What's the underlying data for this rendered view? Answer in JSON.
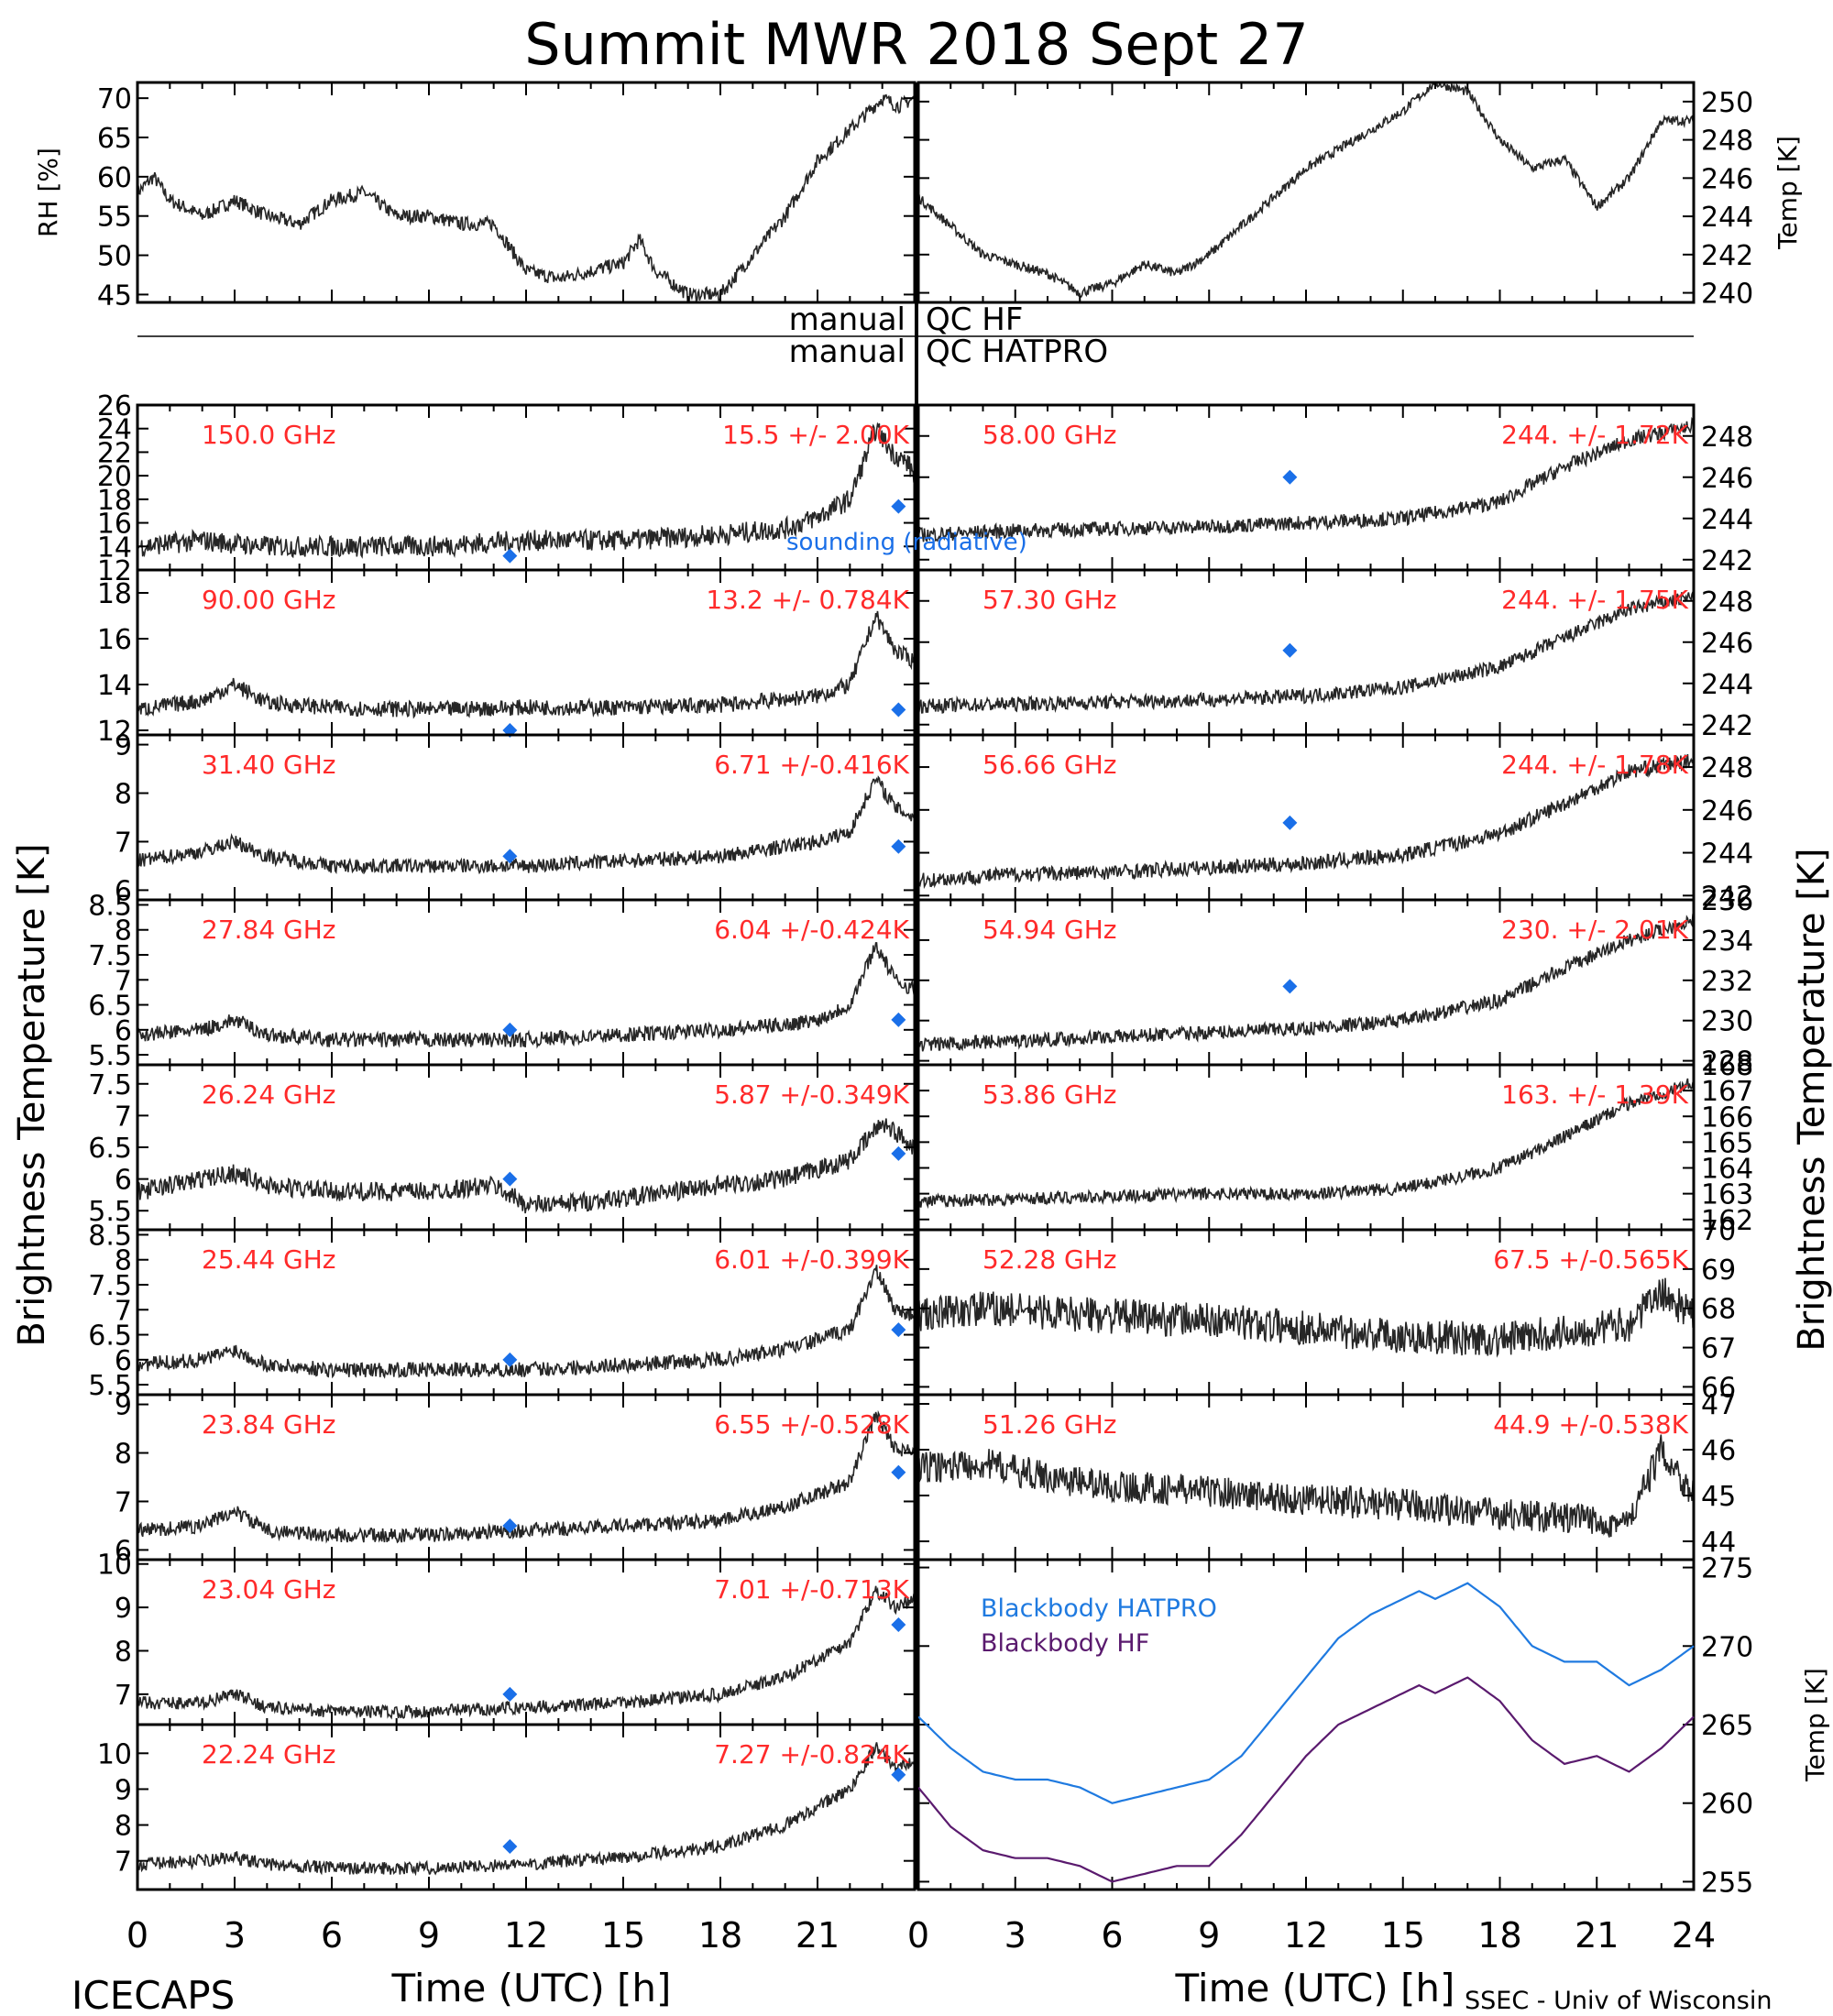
{
  "title": "Summit MWR 2018 Sept 27",
  "footer": {
    "left_label": "ICECAPS",
    "right_label": "SSEC - Univ of Wisconsin",
    "xlabel": "Time (UTC) [h]",
    "xticks": [
      "0",
      "3",
      "6",
      "9",
      "12",
      "15",
      "18",
      "21",
      "24"
    ]
  },
  "ylabel_left": "Brightness Temperature [K]",
  "ylabel_right": "Brightness Temperature [K]",
  "qc_labels": {
    "row1_left": "manual",
    "row1_right": "QC HF",
    "row2_left": "manual",
    "row2_right": "QC HATPRO"
  },
  "sounding_label": "sounding (radiative)",
  "colors": {
    "freq_label": "#ff2a2a",
    "sounding": "#1a6fe8",
    "blackbody_hatpro": "#1f7ae0",
    "blackbody_hf": "#5a1a6e",
    "trace": "#000000"
  },
  "chart_data": [
    {
      "id": "rh",
      "type": "scatter",
      "ylabel": "RH [%]",
      "ylim": [
        44,
        72
      ],
      "yticks": [
        45,
        50,
        55,
        60,
        65,
        70
      ],
      "x": [
        0,
        0.5,
        1,
        2,
        3,
        4,
        5,
        6,
        7,
        8,
        9,
        10,
        11,
        12,
        13,
        14,
        15,
        15.5,
        16,
        17,
        18,
        19,
        20,
        21,
        22,
        22.5,
        23,
        23.5,
        24
      ],
      "y": [
        58,
        60,
        57,
        55,
        57,
        55,
        54,
        57,
        58,
        55,
        55,
        54,
        54,
        48,
        47,
        48,
        49,
        52,
        48,
        45,
        45,
        50,
        55,
        62,
        66,
        68,
        70,
        69,
        70
      ]
    },
    {
      "id": "temp",
      "type": "scatter",
      "ylabel": "Temp [K]",
      "ylim": [
        239.5,
        251
      ],
      "yticks": [
        240,
        242,
        244,
        246,
        248,
        250
      ],
      "x": [
        0,
        1,
        2,
        3,
        4,
        5,
        6,
        7,
        8,
        9,
        10,
        11,
        12,
        13,
        14,
        15,
        16,
        17,
        18,
        19,
        20,
        21,
        22,
        23,
        24
      ],
      "y": [
        245,
        243.5,
        242,
        241.5,
        241,
        240,
        240.5,
        241.5,
        241,
        242,
        243.5,
        245,
        246.5,
        247.5,
        248.5,
        249.5,
        251,
        250.5,
        248,
        246.5,
        247,
        244.5,
        246,
        249,
        249
      ]
    },
    {
      "id": "ch150",
      "type": "scatter",
      "label": "150.0 GHz",
      "stat": "15.5 +/-  2.00K",
      "ylim": [
        12,
        26
      ],
      "yticks": [
        12,
        14,
        16,
        18,
        20,
        22,
        24,
        26
      ],
      "x": [
        0,
        2,
        4,
        6,
        9,
        12,
        15,
        18,
        20,
        21,
        22,
        22.8,
        23.3,
        23.8,
        24
      ],
      "y": [
        14,
        14.5,
        14,
        14,
        14,
        14.5,
        14.5,
        15,
        15.5,
        16.5,
        18,
        24,
        22,
        21,
        20
      ],
      "sounding": [
        {
          "x": 11.5,
          "y": 13.2
        },
        {
          "x": 23.5,
          "y": 17.4
        }
      ]
    },
    {
      "id": "ch58",
      "type": "scatter",
      "label": "58.00 GHz",
      "stat": "244. +/-  1.72K",
      "ylim": [
        241.5,
        249.5
      ],
      "yticks": [
        242,
        244,
        246,
        248
      ],
      "x": [
        0,
        3,
        6,
        9,
        12,
        15,
        18,
        20,
        22,
        24
      ],
      "y": [
        243.2,
        243.4,
        243.5,
        243.6,
        243.8,
        244,
        244.8,
        246.5,
        247.8,
        248.5
      ],
      "sounding": [
        {
          "x": 11.5,
          "y": 246
        }
      ]
    },
    {
      "id": "ch90",
      "type": "scatter",
      "label": "90.00 GHz",
      "stat": "13.2 +/- 0.784K",
      "ylim": [
        11.8,
        19
      ],
      "yticks": [
        12,
        14,
        16,
        18
      ],
      "x": [
        0,
        2,
        3,
        4,
        6,
        9,
        12,
        15,
        18,
        21,
        22,
        22.8,
        23.4,
        24
      ],
      "y": [
        12.9,
        13.3,
        14,
        13.2,
        13,
        12.9,
        13,
        13,
        13.1,
        13.5,
        14,
        17,
        15.5,
        15
      ],
      "sounding": [
        {
          "x": 11.5,
          "y": 12
        },
        {
          "x": 23.5,
          "y": 12.9
        }
      ]
    },
    {
      "id": "ch57_30",
      "type": "scatter",
      "label": "57.30 GHz",
      "stat": "244. +/-  1.75K",
      "ylim": [
        241.5,
        249.5
      ],
      "yticks": [
        242,
        244,
        246,
        248
      ],
      "x": [
        0,
        3,
        6,
        9,
        12,
        15,
        18,
        20,
        22,
        24
      ],
      "y": [
        242.9,
        243,
        243.1,
        243.2,
        243.4,
        243.8,
        244.8,
        246.2,
        247.6,
        248.2
      ],
      "sounding": [
        {
          "x": 11.5,
          "y": 245.6
        }
      ]
    },
    {
      "id": "ch31_40",
      "type": "scatter",
      "label": "31.40 GHz",
      "stat": "6.71 +/-0.416K",
      "ylim": [
        5.8,
        9.2
      ],
      "yticks": [
        6,
        7,
        8,
        9
      ],
      "x": [
        0,
        2,
        3,
        4,
        6,
        9,
        12,
        15,
        18,
        20,
        21,
        22,
        22.8,
        23.4,
        24
      ],
      "y": [
        6.6,
        6.8,
        7,
        6.7,
        6.5,
        6.5,
        6.5,
        6.6,
        6.7,
        6.9,
        7,
        7.2,
        8.3,
        7.7,
        7.5
      ],
      "sounding": [
        {
          "x": 11.5,
          "y": 6.7
        },
        {
          "x": 23.5,
          "y": 6.9
        }
      ]
    },
    {
      "id": "ch56_66",
      "type": "scatter",
      "label": "56.66 GHz",
      "stat": "244. +/-  1.78K",
      "ylim": [
        241.8,
        249.5
      ],
      "yticks": [
        242,
        244,
        246,
        248
      ],
      "x": [
        0,
        3,
        6,
        9,
        12,
        15,
        18,
        20,
        22,
        24
      ],
      "y": [
        242.7,
        243,
        243.1,
        243.3,
        243.5,
        243.9,
        244.9,
        246.3,
        247.8,
        248.3
      ],
      "sounding": [
        {
          "x": 11.5,
          "y": 245.4
        }
      ]
    },
    {
      "id": "ch27_84",
      "type": "scatter",
      "label": "27.84 GHz",
      "stat": "6.04 +/-0.424K",
      "ylim": [
        5.3,
        8.6
      ],
      "yticks": [
        5.5,
        6.0,
        6.5,
        7.0,
        7.5,
        8.0,
        8.5
      ],
      "x": [
        0,
        2,
        3,
        4,
        6,
        9,
        12,
        15,
        18,
        20,
        21,
        22,
        22.8,
        23.4,
        24
      ],
      "y": [
        5.9,
        6,
        6.2,
        5.9,
        5.8,
        5.8,
        5.8,
        5.9,
        6,
        6.1,
        6.2,
        6.5,
        7.7,
        7,
        6.8
      ],
      "sounding": [
        {
          "x": 11.5,
          "y": 6
        },
        {
          "x": 23.5,
          "y": 6.2
        }
      ]
    },
    {
      "id": "ch54_94",
      "type": "scatter",
      "label": "54.94 GHz",
      "stat": "230. +/-  2.01K",
      "ylim": [
        227.8,
        236
      ],
      "yticks": [
        228,
        230,
        232,
        234,
        236
      ],
      "x": [
        0,
        3,
        6,
        9,
        12,
        15,
        18,
        20,
        22,
        24
      ],
      "y": [
        228.8,
        229,
        229.2,
        229.4,
        229.6,
        230,
        231,
        232.6,
        234,
        235
      ],
      "sounding": [
        {
          "x": 11.5,
          "y": 231.7
        }
      ]
    },
    {
      "id": "ch26_24",
      "type": "scatter",
      "label": "26.24 GHz",
      "stat": "5.87 +/-0.349K",
      "ylim": [
        5.2,
        7.8
      ],
      "yticks": [
        5.5,
        6.0,
        6.5,
        7.0,
        7.5
      ],
      "x": [
        0,
        2,
        3,
        4,
        6,
        9,
        11,
        12,
        13,
        15,
        18,
        20,
        22,
        23,
        24
      ],
      "y": [
        5.8,
        6,
        6.1,
        5.9,
        5.8,
        5.8,
        5.9,
        5.6,
        5.6,
        5.7,
        5.9,
        6,
        6.3,
        6.9,
        6.5
      ],
      "sounding": [
        {
          "x": 11.5,
          "y": 6
        },
        {
          "x": 23.5,
          "y": 6.4
        }
      ]
    },
    {
      "id": "ch53_86",
      "type": "scatter",
      "label": "53.86 GHz",
      "stat": "163. +/-  1.39K",
      "ylim": [
        161.6,
        168
      ],
      "yticks": [
        162,
        163,
        164,
        165,
        166,
        167,
        168
      ],
      "x": [
        0,
        3,
        6,
        9,
        12,
        15,
        18,
        20,
        22,
        24
      ],
      "y": [
        162.7,
        162.8,
        162.9,
        163,
        163,
        163.2,
        164,
        165.2,
        166.5,
        167.3
      ],
      "sounding": []
    },
    {
      "id": "ch25_44",
      "type": "scatter",
      "label": "25.44 GHz",
      "stat": "6.01 +/-0.399K",
      "ylim": [
        5.3,
        8.6
      ],
      "yticks": [
        5.5,
        6.0,
        6.5,
        7.0,
        7.5,
        8.0,
        8.5
      ],
      "x": [
        0,
        2,
        3,
        4,
        6,
        9,
        12,
        15,
        18,
        20,
        22,
        22.8,
        23.4,
        24
      ],
      "y": [
        5.9,
        6,
        6.2,
        5.9,
        5.8,
        5.8,
        5.8,
        5.9,
        6,
        6.2,
        6.6,
        7.8,
        7,
        6.9
      ],
      "sounding": [
        {
          "x": 11.5,
          "y": 6
        },
        {
          "x": 23.5,
          "y": 6.6
        }
      ]
    },
    {
      "id": "ch52_28",
      "type": "scatter",
      "label": "52.28 GHz",
      "stat": "67.5 +/-0.565K",
      "ylim": [
        65.8,
        70
      ],
      "yticks": [
        66,
        67,
        68,
        69,
        70
      ],
      "x": [
        0,
        2,
        4,
        6,
        9,
        12,
        15,
        18,
        20,
        22,
        23,
        24
      ],
      "y": [
        67.8,
        68,
        67.9,
        67.8,
        67.7,
        67.5,
        67.3,
        67.2,
        67.4,
        67.6,
        68.4,
        67.8
      ],
      "sounding": []
    },
    {
      "id": "ch23_84",
      "type": "scatter",
      "label": "23.84 GHz",
      "stat": "6.55 +/-0.528K",
      "ylim": [
        5.8,
        9.2
      ],
      "yticks": [
        6,
        7,
        8,
        9
      ],
      "x": [
        0,
        2,
        3,
        4,
        6,
        9,
        12,
        15,
        18,
        20,
        22,
        22.8,
        23.4,
        24
      ],
      "y": [
        6.4,
        6.5,
        6.8,
        6.4,
        6.3,
        6.3,
        6.4,
        6.5,
        6.6,
        6.9,
        7.4,
        8.8,
        8.1,
        8
      ],
      "sounding": [
        {
          "x": 11.5,
          "y": 6.5
        },
        {
          "x": 23.5,
          "y": 7.6
        }
      ]
    },
    {
      "id": "ch51_26",
      "type": "scatter",
      "label": "51.26 GHz",
      "stat": "44.9 +/-0.538K",
      "ylim": [
        43.6,
        47.2
      ],
      "yticks": [
        44,
        45,
        46,
        47
      ],
      "x": [
        0,
        2,
        4,
        6,
        9,
        12,
        15,
        18,
        20,
        22,
        23,
        24
      ],
      "y": [
        45.6,
        45.7,
        45.4,
        45.2,
        45.1,
        44.9,
        44.8,
        44.6,
        44.5,
        44.4,
        46,
        45
      ],
      "sounding": []
    },
    {
      "id": "ch23_04",
      "type": "scatter",
      "label": "23.04 GHz",
      "stat": "7.01 +/-0.713K",
      "ylim": [
        6.3,
        10.1
      ],
      "yticks": [
        7,
        8,
        9,
        10
      ],
      "x": [
        0,
        2,
        3,
        4,
        6,
        9,
        12,
        15,
        18,
        20,
        22,
        22.8,
        23.4,
        24
      ],
      "y": [
        6.8,
        6.8,
        7,
        6.7,
        6.6,
        6.6,
        6.7,
        6.8,
        7,
        7.4,
        8.2,
        9.4,
        9,
        9.2
      ],
      "sounding": [
        {
          "x": 11.5,
          "y": 7
        },
        {
          "x": 23.5,
          "y": 8.6
        }
      ]
    },
    {
      "id": "blackbody",
      "type": "line",
      "ylabel": "Temp [K]",
      "ylim": [
        254.5,
        275.5
      ],
      "yticks": [
        255,
        260,
        265,
        270,
        275
      ],
      "series": [
        {
          "name": "Blackbody HATPRO",
          "x": [
            0,
            1,
            2,
            3,
            4,
            5,
            6,
            7,
            8,
            9,
            10,
            11,
            12,
            13,
            14,
            15,
            15.5,
            16,
            17,
            18,
            19,
            20,
            21,
            22,
            23,
            24
          ],
          "y": [
            265.5,
            263.5,
            262,
            261.5,
            261.5,
            261,
            260,
            260.5,
            261,
            261.5,
            263,
            265.5,
            268,
            270.5,
            272,
            273,
            273.5,
            273,
            274,
            272.5,
            270,
            269,
            269,
            267.5,
            268.5,
            270
          ]
        },
        {
          "name": "Blackbody HF",
          "x": [
            0,
            1,
            2,
            3,
            4,
            5,
            6,
            7,
            8,
            9,
            10,
            11,
            12,
            13,
            14,
            15,
            15.5,
            16,
            17,
            18,
            19,
            20,
            21,
            22,
            23,
            24
          ],
          "y": [
            261,
            258.5,
            257,
            256.5,
            256.5,
            256,
            255,
            255.5,
            256,
            256,
            258,
            260.5,
            263,
            265,
            266,
            267,
            267.5,
            267,
            268,
            266.5,
            264,
            262.5,
            263,
            262,
            263.5,
            265.5
          ]
        }
      ]
    },
    {
      "id": "ch22_24",
      "type": "scatter",
      "label": "22.24 GHz",
      "stat": "7.27 +/-0.824K",
      "ylim": [
        6.2,
        10.8
      ],
      "yticks": [
        7,
        8,
        9,
        10
      ],
      "x": [
        0,
        2,
        3,
        4,
        6,
        9,
        12,
        15,
        18,
        20,
        22,
        22.8,
        23.4,
        24
      ],
      "y": [
        6.9,
        7,
        7.1,
        6.9,
        6.8,
        6.8,
        6.9,
        7.1,
        7.4,
        8,
        9,
        10.2,
        9.6,
        9.8
      ],
      "sounding": [
        {
          "x": 11.5,
          "y": 7.4
        },
        {
          "x": 23.5,
          "y": 9.4
        }
      ]
    }
  ]
}
